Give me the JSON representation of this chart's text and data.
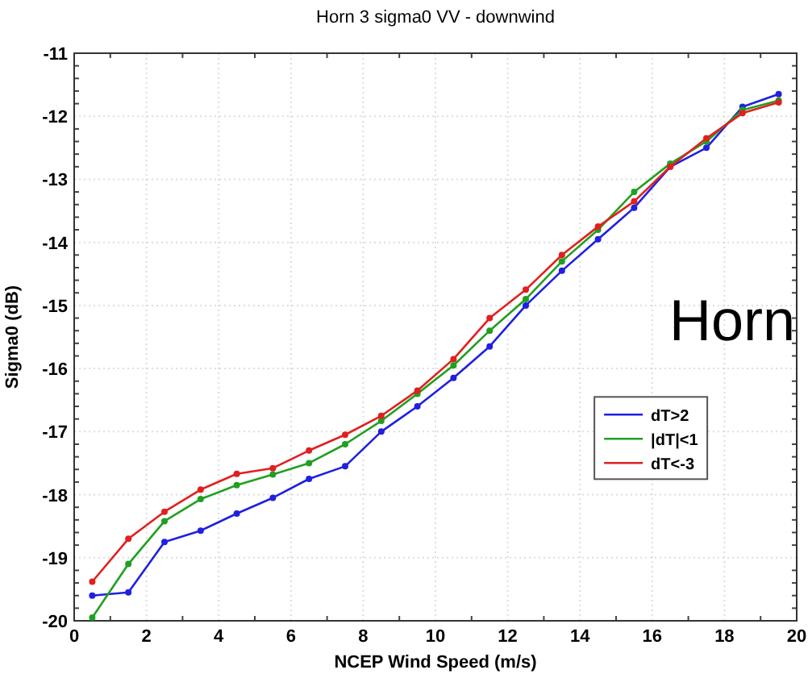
{
  "chart_data": {
    "type": "line",
    "title": "Horn 3 sigma0 VV - downwind",
    "xlabel": "NCEP Wind Speed (m/s)",
    "ylabel": "Sigma0 (dB)",
    "annotations": [
      "Horn"
    ],
    "x": [
      0.5,
      1.5,
      2.5,
      3.5,
      4.5,
      5.5,
      6.5,
      7.5,
      8.5,
      9.5,
      10.5,
      11.5,
      12.5,
      13.5,
      14.5,
      15.5,
      16.5,
      17.5,
      18.5,
      19.5
    ],
    "series": [
      {
        "name": "dT>2",
        "color": "#2020e0",
        "values": [
          -19.6,
          -19.55,
          -18.75,
          -18.57,
          -18.3,
          -18.05,
          -17.75,
          -17.55,
          -17.0,
          -16.6,
          -16.15,
          -15.65,
          -15.0,
          -14.45,
          -13.95,
          -13.45,
          -12.8,
          -12.5,
          -11.85,
          -11.65
        ]
      },
      {
        "name": "|dT|<1",
        "color": "#20a020",
        "values": [
          -19.95,
          -19.1,
          -18.42,
          -18.07,
          -17.85,
          -17.68,
          -17.5,
          -17.2,
          -16.83,
          -16.4,
          -15.95,
          -15.4,
          -14.9,
          -14.3,
          -13.8,
          -13.2,
          -12.75,
          -12.4,
          -11.9,
          -11.75
        ]
      },
      {
        "name": "dT<-3",
        "color": "#e02020",
        "values": [
          -19.38,
          -18.7,
          -18.27,
          -17.92,
          -17.67,
          -17.58,
          -17.3,
          -17.05,
          -16.75,
          -16.35,
          -15.85,
          -15.2,
          -14.75,
          -14.2,
          -13.75,
          -13.35,
          -12.8,
          -12.35,
          -11.95,
          -11.78
        ]
      }
    ],
    "xlim": [
      0,
      20
    ],
    "xticks": [
      0,
      2,
      4,
      6,
      8,
      10,
      12,
      14,
      16,
      18,
      20
    ],
    "ylim": [
      -20,
      -11
    ],
    "yticks": [
      -20,
      -19,
      -18,
      -17,
      -16,
      -15,
      -14,
      -13,
      -12,
      -11
    ],
    "grid": true,
    "legend": "right",
    "marker": "circle",
    "line_style": "solid"
  }
}
